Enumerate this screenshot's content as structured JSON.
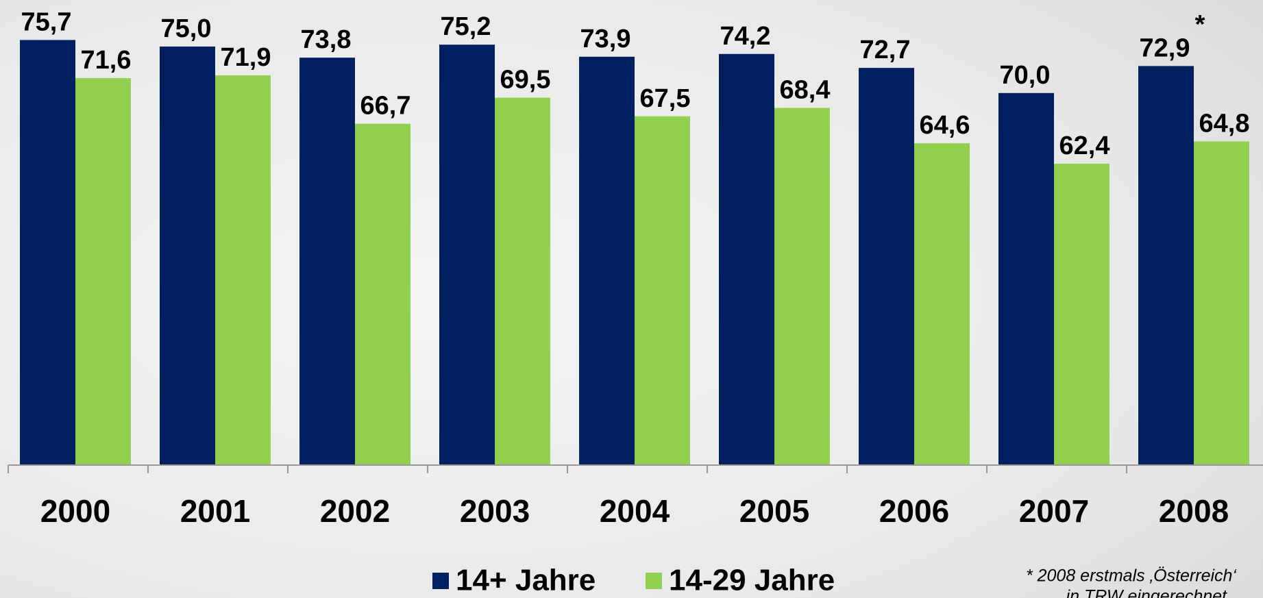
{
  "chart_data": {
    "type": "bar",
    "categories": [
      "2000",
      "2001",
      "2002",
      "2003",
      "2004",
      "2005",
      "2006",
      "2007",
      "2008"
    ],
    "series": [
      {
        "name": "14+ Jahre",
        "color": "#00205f",
        "values": [
          75.7,
          75.0,
          73.8,
          75.2,
          73.9,
          74.2,
          72.7,
          70.0,
          72.9
        ],
        "value_labels": [
          "75,7",
          "75,0",
          "73,8",
          "75,2",
          "73,9",
          "74,2",
          "72,7",
          "70,0",
          "72,9"
        ]
      },
      {
        "name": "14-29 Jahre",
        "color": "#92d050",
        "values": [
          71.6,
          71.9,
          66.7,
          69.5,
          67.5,
          68.4,
          64.6,
          62.4,
          64.8
        ],
        "value_labels": [
          "71,6",
          "71,9",
          "66,7",
          "69,5",
          "67,5",
          "68,4",
          "64,6",
          "62,4",
          "64,8"
        ]
      }
    ],
    "ylim": [
      30,
      80
    ],
    "annotations": [
      "*",
      "* 2008 erstmals ‚Österreich‘",
      "in TRW eingerechnet"
    ]
  }
}
